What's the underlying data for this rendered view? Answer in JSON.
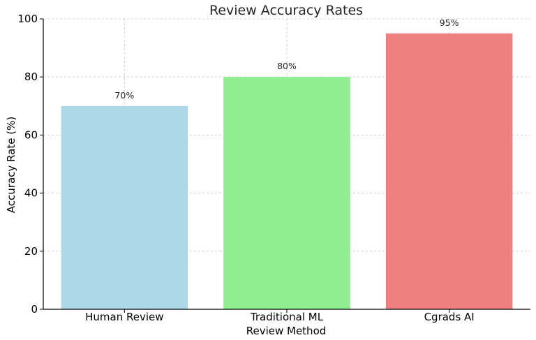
{
  "chart_data": {
    "type": "bar",
    "title": "Review Accuracy Rates",
    "xlabel": "Review Method",
    "ylabel": "Accuracy Rate (%)",
    "categories": [
      "Human Review",
      "Traditional ML",
      "Cgrads AI"
    ],
    "values": [
      70,
      80,
      95
    ],
    "data_labels": [
      "70%",
      "80%",
      "95%"
    ],
    "colors": [
      "#add8e6",
      "#90ee90",
      "#f08080"
    ],
    "ylim": [
      0,
      100
    ],
    "yticks": [
      0,
      20,
      40,
      60,
      80,
      100
    ],
    "ytick_labels": [
      "0",
      "20",
      "40",
      "60",
      "80",
      "100"
    ],
    "grid": true,
    "legend": false
  }
}
